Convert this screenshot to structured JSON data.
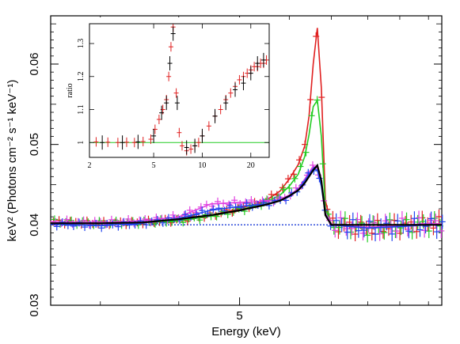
{
  "chart_data": [
    {
      "type": "line",
      "title": "",
      "xlabel": "Energy (keV)",
      "ylabel": "keV² (Photons cm⁻² s⁻¹ keV⁻¹)",
      "xlim": [
        2.5,
        10.5
      ],
      "ylim": [
        0.03,
        0.066
      ],
      "xticks": [
        5
      ],
      "yticks": [
        0.03,
        0.04,
        0.05,
        0.06
      ],
      "xtick_labels": [
        "5"
      ],
      "ytick_labels": [
        "0.03",
        "0.04",
        "0.05",
        "0.06"
      ],
      "grid": false,
      "legend": null,
      "baseline": {
        "y": 0.04,
        "color": "#1f3fd8",
        "style": "dotted"
      },
      "series": [
        {
          "color": "#e02020",
          "x": [
            2.5,
            3.0,
            3.5,
            4.0,
            4.5,
            5.0,
            5.5,
            5.8,
            6.0,
            6.2,
            6.35,
            6.45,
            6.55,
            6.65,
            6.75,
            6.85,
            7.0,
            7.5,
            8.0,
            9.0,
            10.0,
            10.5
          ],
          "y": [
            0.0404,
            0.0402,
            0.0403,
            0.0406,
            0.0412,
            0.042,
            0.043,
            0.0442,
            0.0457,
            0.0475,
            0.0498,
            0.0535,
            0.06,
            0.0645,
            0.057,
            0.043,
            0.04,
            0.0398,
            0.0396,
            0.0398,
            0.0402,
            0.0401
          ]
        },
        {
          "color": "#22cc22",
          "x": [
            2.5,
            3.0,
            3.5,
            4.0,
            4.5,
            5.0,
            5.5,
            5.8,
            6.0,
            6.2,
            6.35,
            6.45,
            6.55,
            6.65,
            6.75,
            6.85,
            7.0,
            7.5,
            8.0,
            9.0,
            10.0,
            10.5
          ],
          "y": [
            0.0404,
            0.0402,
            0.0403,
            0.0405,
            0.0411,
            0.0418,
            0.0428,
            0.0437,
            0.0448,
            0.0463,
            0.0485,
            0.0512,
            0.0547,
            0.0555,
            0.051,
            0.042,
            0.0401,
            0.0399,
            0.0396,
            0.0398,
            0.0401,
            0.04
          ]
        },
        {
          "color": "#e040e0",
          "x": [
            2.5,
            3.0,
            3.5,
            4.0,
            4.5,
            5.0,
            5.5,
            5.8,
            6.0,
            6.2,
            6.35,
            6.45,
            6.55,
            6.65,
            6.75,
            6.85,
            7.0,
            7.5,
            8.0,
            9.0,
            10.0,
            10.5
          ],
          "y": [
            0.0404,
            0.0403,
            0.0405,
            0.041,
            0.0426,
            0.0428,
            0.0429,
            0.0432,
            0.0437,
            0.0445,
            0.0457,
            0.0465,
            0.0473,
            0.047,
            0.045,
            0.0415,
            0.0401,
            0.0399,
            0.0397,
            0.0399,
            0.0402,
            0.0401
          ]
        },
        {
          "color": "#2244ee",
          "x": [
            2.5,
            3.0,
            3.5,
            4.0,
            4.5,
            5.0,
            5.5,
            5.8,
            6.0,
            6.2,
            6.35,
            6.45,
            6.55,
            6.65,
            6.75,
            6.85,
            7.0,
            7.5,
            8.0,
            9.0,
            10.0,
            10.5
          ],
          "y": [
            0.0401,
            0.0399,
            0.0402,
            0.0408,
            0.0418,
            0.0423,
            0.0426,
            0.043,
            0.0435,
            0.0443,
            0.0455,
            0.0463,
            0.047,
            0.0468,
            0.0448,
            0.0413,
            0.04,
            0.0398,
            0.0396,
            0.0398,
            0.04,
            0.04
          ]
        },
        {
          "color": "#000000",
          "x": [
            2.5,
            3.0,
            3.5,
            4.0,
            4.5,
            5.0,
            5.5,
            5.8,
            6.0,
            6.2,
            6.35,
            6.45,
            6.55,
            6.65,
            6.75,
            6.85,
            7.0,
            10.5
          ],
          "y": [
            0.0402,
            0.0402,
            0.0403,
            0.0407,
            0.0412,
            0.0418,
            0.0425,
            0.043,
            0.0436,
            0.0443,
            0.0452,
            0.046,
            0.0468,
            0.0474,
            0.0455,
            0.0412,
            0.04,
            0.04
          ]
        }
      ]
    },
    {
      "type": "scatter",
      "title": "",
      "xlabel": "",
      "ylabel": "ratio",
      "xlim": [
        2,
        26
      ],
      "ylim": [
        0.955,
        1.36
      ],
      "xticks": [
        2,
        5,
        10,
        20
      ],
      "yticks": [
        1.0,
        1.1,
        1.2,
        1.3
      ],
      "xtick_labels": [
        "2",
        "5",
        "10",
        "20"
      ],
      "ytick_labels": [
        "1",
        "1.1",
        "1.2",
        "1.3"
      ],
      "grid": false,
      "reference_line": {
        "y": 1.0,
        "color": "#22cc22"
      },
      "series": [
        {
          "color": "#e02020",
          "x": [
            2.2,
            2.6,
            3.0,
            3.4,
            3.8,
            4.3,
            4.8,
            5.1,
            5.4,
            5.7,
            6.0,
            6.2,
            6.4,
            6.6,
            6.9,
            7.2,
            7.5,
            8.0,
            8.5,
            9.0,
            9.5,
            10.0,
            11.0,
            12.0,
            13.0,
            14.0,
            15.0,
            16.0,
            17.0,
            18.0,
            19.0,
            20.0,
            21.0,
            22.0,
            23.0,
            24.0,
            25.0
          ],
          "y": [
            1.002,
            1.001,
            1.0,
            1.001,
            1.0,
            1.003,
            1.01,
            1.04,
            1.07,
            1.1,
            1.13,
            1.2,
            1.29,
            1.35,
            1.15,
            1.03,
            0.99,
            0.975,
            0.98,
            0.99,
            1.0,
            1.02,
            1.05,
            1.08,
            1.1,
            1.13,
            1.15,
            1.17,
            1.19,
            1.2,
            1.21,
            1.22,
            1.23,
            1.23,
            1.24,
            1.24,
            1.25
          ]
        },
        {
          "color": "#000000",
          "x": [
            2.4,
            3.2,
            4.0,
            5.0,
            5.6,
            6.0,
            6.3,
            6.6,
            7.0,
            8.0,
            9.0,
            10.0,
            12.0,
            14.0,
            16.0,
            18.0,
            20.0,
            22.0,
            24.0
          ],
          "y": [
            1.0,
            1.0,
            1.002,
            1.02,
            1.09,
            1.12,
            1.24,
            1.33,
            1.12,
            0.985,
            0.99,
            1.02,
            1.08,
            1.12,
            1.16,
            1.18,
            1.21,
            1.24,
            1.25
          ]
        }
      ]
    }
  ]
}
